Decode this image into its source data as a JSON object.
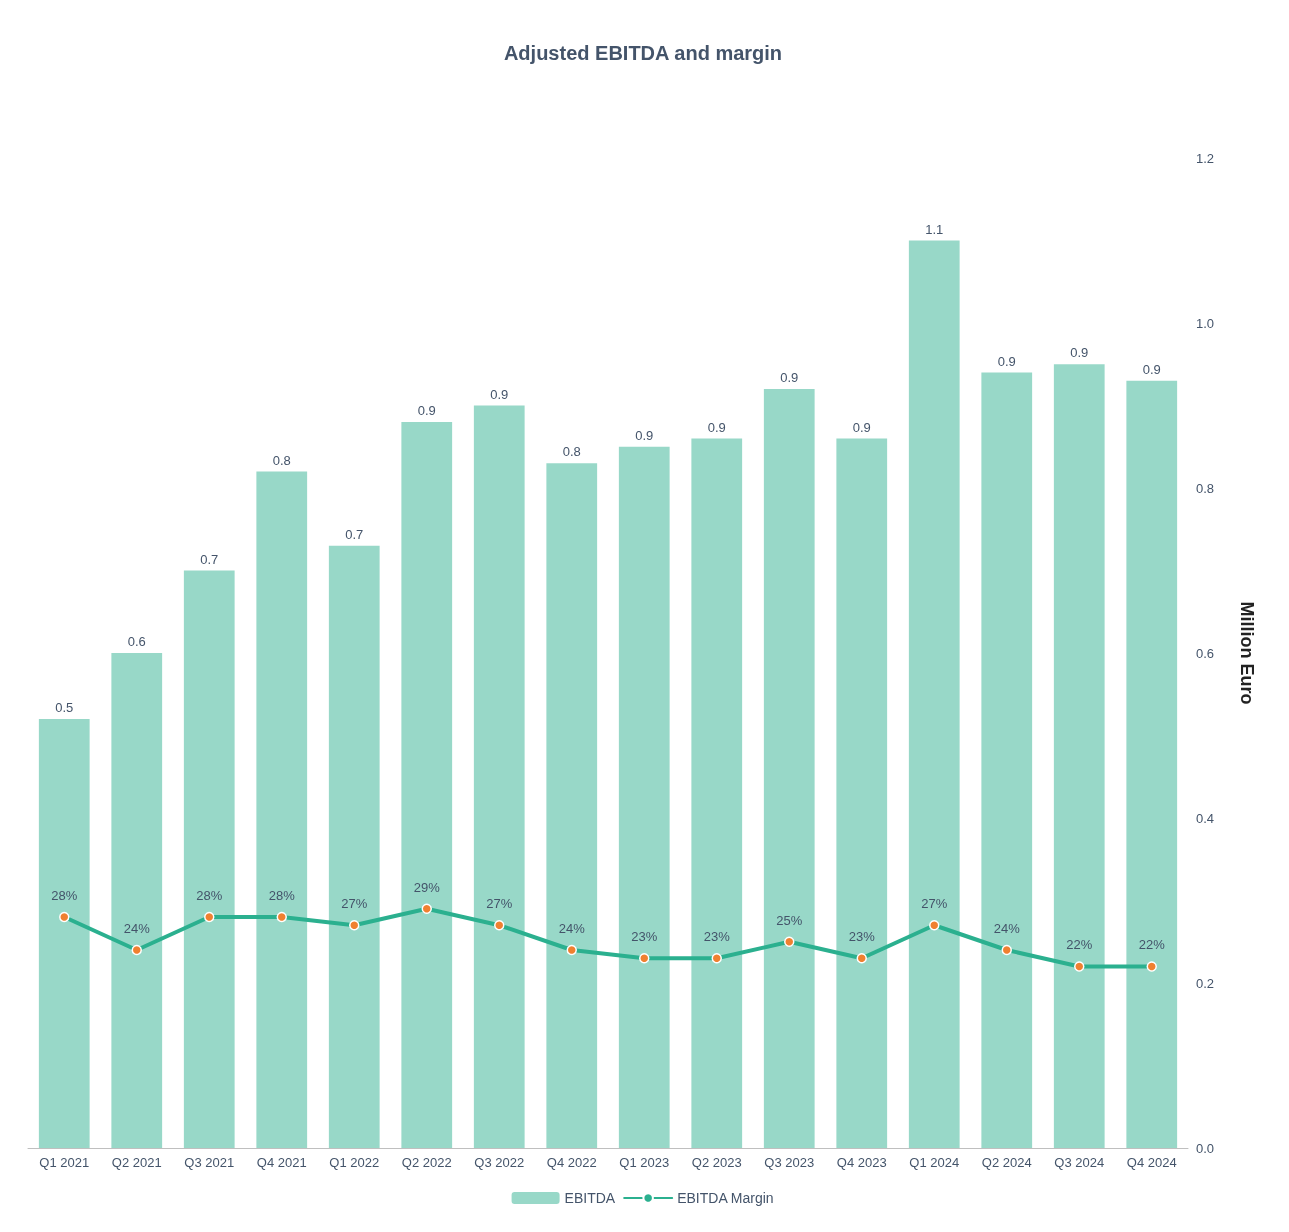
{
  "chart_data": {
    "type": "bar",
    "title": "Adjusted EBITDA and margin",
    "ylabel": "Million Euro",
    "categories": [
      "Q1 2021",
      "Q2 2021",
      "Q3 2021",
      "Q4 2021",
      "Q1 2022",
      "Q2 2022",
      "Q3 2022",
      "Q4 2022",
      "Q1 2023",
      "Q2 2023",
      "Q3 2023",
      "Q4 2023",
      "Q1 2024",
      "Q2 2024",
      "Q3 2024",
      "Q4 2024"
    ],
    "series": [
      {
        "name": "EBITDA",
        "color": "#98d8c8",
        "values": [
          0.52,
          0.6,
          0.7,
          0.82,
          0.73,
          0.88,
          0.9,
          0.83,
          0.85,
          0.86,
          0.92,
          0.86,
          1.1,
          0.94,
          0.95,
          0.93
        ],
        "value_labels": [
          "0.5",
          "0.6",
          "0.7",
          "0.8",
          "0.7",
          "0.9",
          "0.9",
          "0.8",
          "0.9",
          "0.9",
          "0.9",
          "0.9",
          "1.1",
          "0.9",
          "0.9",
          "0.9"
        ]
      },
      {
        "name": "EBITDA Margin",
        "type": "line",
        "color": "#2bb08f",
        "values": [
          0.28,
          0.24,
          0.28,
          0.28,
          0.27,
          0.29,
          0.27,
          0.24,
          0.23,
          0.23,
          0.25,
          0.23,
          0.27,
          0.24,
          0.22,
          0.22
        ],
        "value_labels": [
          "28%",
          "24%",
          "28%",
          "28%",
          "27%",
          "29%",
          "27%",
          "24%",
          "23%",
          "23%",
          "25%",
          "23%",
          "27%",
          "24%",
          "22%",
          "22%"
        ]
      }
    ],
    "ylim": [
      0,
      1.2
    ],
    "yticks": [
      {
        "value": 0,
        "label": "0.0"
      },
      0.2,
      0.4,
      0.6,
      0.8,
      {
        "value": 1,
        "label": "1.0"
      },
      1.2
    ],
    "grid": false,
    "legend": "bottom",
    "marker": "circle",
    "line_style": "solid"
  }
}
